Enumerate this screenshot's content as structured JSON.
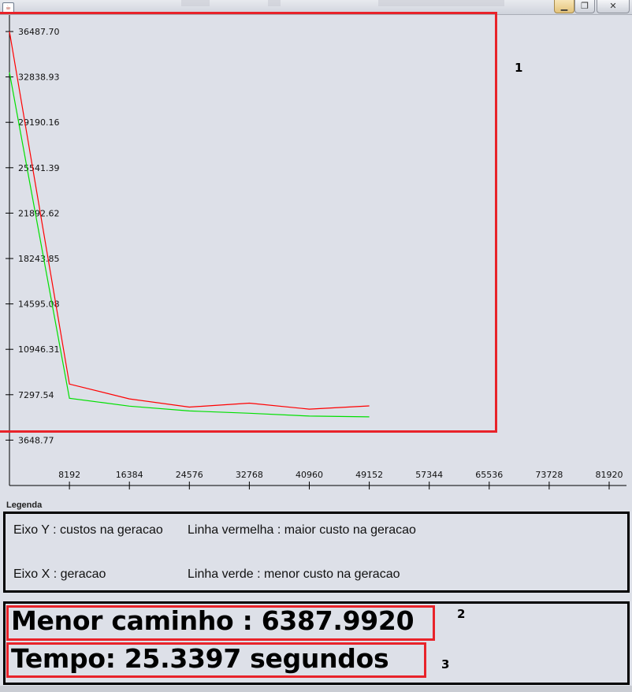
{
  "window": {
    "app_icon": "java-icon",
    "buttons": [
      "minimize",
      "maximize",
      "close"
    ],
    "minimize_glyph": "▁",
    "maximize_glyph": "❐",
    "close_glyph": "✕"
  },
  "chart_data": {
    "type": "line",
    "title": "",
    "y_ticks": [
      "36487.70",
      "32838.93",
      "29190.16",
      "25541.39",
      "21892.62",
      "18243.85",
      "14595.08",
      "10946.31",
      "7297.54",
      "3648.77"
    ],
    "x_ticks": [
      "8192",
      "16384",
      "24576",
      "32768",
      "40960",
      "49152",
      "57344",
      "65536",
      "73728",
      "81920"
    ],
    "xlim": [
      0,
      81920
    ],
    "ylim": [
      0,
      36487.7
    ],
    "series": [
      {
        "name": "Linha vermelha : maior custo na geracao",
        "color": "#ff0000",
        "points": [
          [
            0,
            36490
          ],
          [
            8192,
            8150
          ],
          [
            16384,
            6960
          ],
          [
            24576,
            6300
          ],
          [
            32768,
            6620
          ],
          [
            40960,
            6140
          ],
          [
            49152,
            6400
          ]
        ]
      },
      {
        "name": "Linha verde : menor custo na geracao",
        "color": "#00e000",
        "points": [
          [
            0,
            33200
          ],
          [
            8192,
            7010
          ],
          [
            16384,
            6380
          ],
          [
            24576,
            5990
          ],
          [
            32768,
            5810
          ],
          [
            40960,
            5580
          ],
          [
            49152,
            5520
          ]
        ]
      }
    ]
  },
  "annotations": {
    "label_1": "1",
    "label_2": "2",
    "label_3": "3",
    "highlight_color": "#e8232a"
  },
  "legend": {
    "title": "Legenda",
    "y_axis": "Eixo Y : custos na geracao",
    "red_line": "Linha vermelha : maior custo na geracao",
    "x_axis": "Eixo X : geracao",
    "green_line": "Linha verde : menor custo na geracao"
  },
  "results": {
    "shortest_path": "Menor caminho :   6387.9920",
    "time": "Tempo:  25.3397 segundos"
  }
}
